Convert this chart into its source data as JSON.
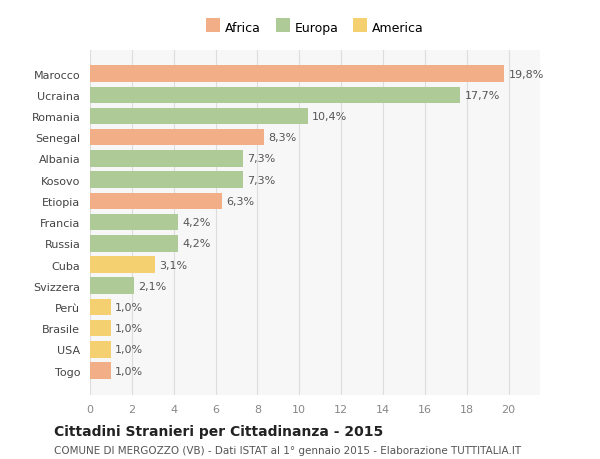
{
  "countries": [
    "Togo",
    "USA",
    "Brasile",
    "Perù",
    "Svizzera",
    "Cuba",
    "Russia",
    "Francia",
    "Etiopia",
    "Kosovo",
    "Albania",
    "Senegal",
    "Romania",
    "Ucraina",
    "Marocco"
  ],
  "values": [
    1.0,
    1.0,
    1.0,
    1.0,
    2.1,
    3.1,
    4.2,
    4.2,
    6.3,
    7.3,
    7.3,
    8.3,
    10.4,
    17.7,
    19.8
  ],
  "labels": [
    "1,0%",
    "1,0%",
    "1,0%",
    "1,0%",
    "2,1%",
    "3,1%",
    "4,2%",
    "4,2%",
    "6,3%",
    "7,3%",
    "7,3%",
    "8,3%",
    "10,4%",
    "17,7%",
    "19,8%"
  ],
  "continents": [
    "Africa",
    "America",
    "America",
    "America",
    "Europa",
    "America",
    "Europa",
    "Europa",
    "Africa",
    "Europa",
    "Europa",
    "Africa",
    "Europa",
    "Europa",
    "Africa"
  ],
  "colors": {
    "Africa": "#F2AE87",
    "Europa": "#AECA96",
    "America": "#F5D070"
  },
  "legend_order": [
    "Africa",
    "Europa",
    "America"
  ],
  "title": "Cittadini Stranieri per Cittadinanza - 2015",
  "subtitle": "COMUNE DI MERGOZZO (VB) - Dati ISTAT al 1° gennaio 2015 - Elaborazione TUTTITALIA.IT",
  "xlim": [
    0,
    21.5
  ],
  "xticks": [
    0,
    2,
    4,
    6,
    8,
    10,
    12,
    14,
    16,
    18,
    20
  ],
  "background_color": "#ffffff",
  "plot_bg_color": "#f7f7f7",
  "grid_color": "#dddddd",
  "bar_height": 0.78,
  "label_fontsize": 8,
  "title_fontsize": 10,
  "subtitle_fontsize": 7.5,
  "tick_fontsize": 8,
  "legend_fontsize": 9
}
